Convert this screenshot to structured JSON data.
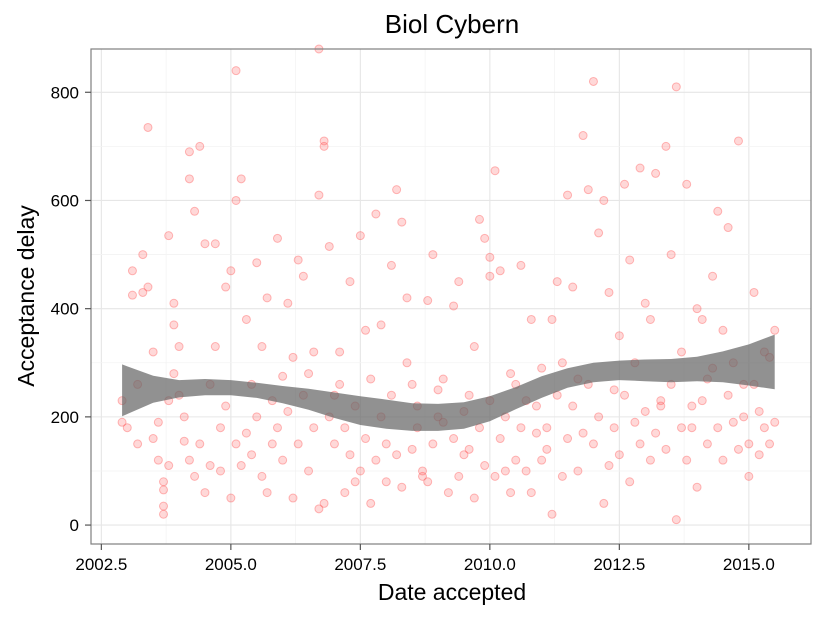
{
  "chart_data": {
    "type": "scatter",
    "title": "Biol Cybern",
    "xlabel": "Date accepted",
    "ylabel": "Acceptance delay",
    "xlim": [
      2002.3,
      2016.2
    ],
    "ylim": [
      -35,
      880
    ],
    "x_ticks": [
      2002.5,
      2005.0,
      2007.5,
      2010.0,
      2012.5,
      2015.0
    ],
    "x_tick_labels": [
      "2002.5",
      "2005.0",
      "2007.5",
      "2010.0",
      "2012.5",
      "2015.0"
    ],
    "y_ticks": [
      0,
      200,
      400,
      600,
      800
    ],
    "y_tick_labels": [
      "0",
      "200",
      "400",
      "600",
      "800"
    ],
    "grid": true,
    "point_color": "#ff4d4d",
    "band_color": "#666666",
    "series": [
      {
        "values": [
          [
            2002.9,
            190
          ],
          [
            2003.1,
            470
          ],
          [
            2003.1,
            425
          ],
          [
            2003.3,
            500
          ],
          [
            2003.3,
            430
          ],
          [
            2003.4,
            735
          ],
          [
            2003.4,
            440
          ],
          [
            2003.5,
            320
          ],
          [
            2003.6,
            190
          ],
          [
            2003.7,
            20
          ],
          [
            2003.7,
            65
          ],
          [
            2003.7,
            35
          ],
          [
            2003.8,
            535
          ],
          [
            2003.8,
            230
          ],
          [
            2003.9,
            410
          ],
          [
            2003.9,
            370
          ],
          [
            2004.0,
            330
          ],
          [
            2004.1,
            155
          ],
          [
            2004.2,
            690
          ],
          [
            2004.2,
            640
          ],
          [
            2004.3,
            580
          ],
          [
            2004.4,
            700
          ],
          [
            2004.5,
            520
          ],
          [
            2004.6,
            260
          ],
          [
            2004.7,
            520
          ],
          [
            2004.8,
            180
          ],
          [
            2004.9,
            440
          ],
          [
            2005.0,
            470
          ],
          [
            2005.1,
            840
          ],
          [
            2005.1,
            600
          ],
          [
            2005.2,
            640
          ],
          [
            2005.3,
            380
          ],
          [
            2005.4,
            130
          ],
          [
            2005.5,
            485
          ],
          [
            2005.6,
            330
          ],
          [
            2005.7,
            420
          ],
          [
            2005.8,
            230
          ],
          [
            2005.9,
            530
          ],
          [
            2006.0,
            275
          ],
          [
            2006.1,
            410
          ],
          [
            2006.2,
            310
          ],
          [
            2006.3,
            490
          ],
          [
            2006.4,
            460
          ],
          [
            2006.5,
            280
          ],
          [
            2006.6,
            320
          ],
          [
            2006.7,
            880
          ],
          [
            2006.7,
            610
          ],
          [
            2006.8,
            700
          ],
          [
            2006.8,
            710
          ],
          [
            2006.9,
            515
          ],
          [
            2007.0,
            240
          ],
          [
            2007.1,
            320
          ],
          [
            2007.2,
            180
          ],
          [
            2007.3,
            450
          ],
          [
            2007.4,
            80
          ],
          [
            2007.5,
            535
          ],
          [
            2007.6,
            360
          ],
          [
            2007.7,
            270
          ],
          [
            2007.8,
            575
          ],
          [
            2007.9,
            370
          ],
          [
            2008.0,
            150
          ],
          [
            2008.1,
            480
          ],
          [
            2008.2,
            620
          ],
          [
            2008.3,
            560
          ],
          [
            2008.4,
            420
          ],
          [
            2008.5,
            260
          ],
          [
            2008.6,
            180
          ],
          [
            2008.7,
            90
          ],
          [
            2008.8,
            415
          ],
          [
            2008.9,
            500
          ],
          [
            2009.0,
            250
          ],
          [
            2009.1,
            190
          ],
          [
            2009.3,
            405
          ],
          [
            2009.4,
            450
          ],
          [
            2009.5,
            130
          ],
          [
            2009.6,
            240
          ],
          [
            2009.7,
            330
          ],
          [
            2009.8,
            565
          ],
          [
            2009.9,
            530
          ],
          [
            2010.0,
            460
          ],
          [
            2010.0,
            495
          ],
          [
            2010.1,
            655
          ],
          [
            2010.2,
            470
          ],
          [
            2010.3,
            100
          ],
          [
            2010.4,
            280
          ],
          [
            2010.5,
            260
          ],
          [
            2010.6,
            480
          ],
          [
            2010.7,
            230
          ],
          [
            2010.8,
            380
          ],
          [
            2010.9,
            170
          ],
          [
            2011.0,
            290
          ],
          [
            2011.1,
            140
          ],
          [
            2011.2,
            380
          ],
          [
            2011.3,
            450
          ],
          [
            2011.4,
            300
          ],
          [
            2011.5,
            610
          ],
          [
            2011.6,
            440
          ],
          [
            2011.7,
            270
          ],
          [
            2011.8,
            720
          ],
          [
            2011.9,
            620
          ],
          [
            2012.0,
            820
          ],
          [
            2012.1,
            540
          ],
          [
            2012.2,
            600
          ],
          [
            2012.3,
            430
          ],
          [
            2012.4,
            250
          ],
          [
            2012.5,
            350
          ],
          [
            2012.6,
            630
          ],
          [
            2012.7,
            490
          ],
          [
            2012.8,
            300
          ],
          [
            2012.9,
            660
          ],
          [
            2013.0,
            410
          ],
          [
            2013.1,
            380
          ],
          [
            2013.2,
            650
          ],
          [
            2013.3,
            220
          ],
          [
            2013.4,
            700
          ],
          [
            2013.5,
            500
          ],
          [
            2013.6,
            810
          ],
          [
            2013.7,
            320
          ],
          [
            2013.8,
            630
          ],
          [
            2013.9,
            180
          ],
          [
            2014.0,
            400
          ],
          [
            2014.1,
            380
          ],
          [
            2014.2,
            270
          ],
          [
            2014.3,
            460
          ],
          [
            2014.4,
            580
          ],
          [
            2014.5,
            360
          ],
          [
            2014.6,
            550
          ],
          [
            2014.7,
            300
          ],
          [
            2014.8,
            710
          ],
          [
            2014.9,
            260
          ],
          [
            2015.0,
            150
          ],
          [
            2015.1,
            430
          ],
          [
            2015.2,
            210
          ],
          [
            2015.3,
            320
          ],
          [
            2015.4,
            150
          ],
          [
            2015.5,
            190
          ],
          [
            2002.9,
            230
          ],
          [
            2003.0,
            180
          ],
          [
            2003.2,
            150
          ],
          [
            2003.2,
            260
          ],
          [
            2003.5,
            160
          ],
          [
            2003.6,
            120
          ],
          [
            2003.7,
            80
          ],
          [
            2003.8,
            110
          ],
          [
            2003.9,
            280
          ],
          [
            2004.0,
            240
          ],
          [
            2004.1,
            200
          ],
          [
            2004.2,
            120
          ],
          [
            2004.3,
            90
          ],
          [
            2004.4,
            150
          ],
          [
            2004.5,
            60
          ],
          [
            2004.6,
            110
          ],
          [
            2004.7,
            330
          ],
          [
            2004.8,
            100
          ],
          [
            2004.9,
            220
          ],
          [
            2005.0,
            50
          ],
          [
            2005.1,
            150
          ],
          [
            2005.2,
            110
          ],
          [
            2005.3,
            170
          ],
          [
            2005.4,
            260
          ],
          [
            2005.5,
            200
          ],
          [
            2005.6,
            90
          ],
          [
            2005.7,
            60
          ],
          [
            2005.8,
            150
          ],
          [
            2005.9,
            180
          ],
          [
            2006.0,
            120
          ],
          [
            2006.1,
            210
          ],
          [
            2006.2,
            50
          ],
          [
            2006.3,
            150
          ],
          [
            2006.4,
            240
          ],
          [
            2006.5,
            100
          ],
          [
            2006.6,
            180
          ],
          [
            2006.7,
            30
          ],
          [
            2006.8,
            40
          ],
          [
            2006.9,
            200
          ],
          [
            2007.0,
            150
          ],
          [
            2007.1,
            260
          ],
          [
            2007.2,
            60
          ],
          [
            2007.3,
            130
          ],
          [
            2007.4,
            220
          ],
          [
            2007.5,
            100
          ],
          [
            2007.6,
            160
          ],
          [
            2007.7,
            40
          ],
          [
            2007.8,
            120
          ],
          [
            2007.9,
            200
          ],
          [
            2008.0,
            80
          ],
          [
            2008.1,
            240
          ],
          [
            2008.2,
            130
          ],
          [
            2008.3,
            70
          ],
          [
            2008.4,
            300
          ],
          [
            2008.5,
            140
          ],
          [
            2008.6,
            220
          ],
          [
            2008.7,
            100
          ],
          [
            2008.8,
            80
          ],
          [
            2008.9,
            150
          ],
          [
            2009.0,
            200
          ],
          [
            2009.1,
            270
          ],
          [
            2009.2,
            60
          ],
          [
            2009.3,
            160
          ],
          [
            2009.4,
            90
          ],
          [
            2009.5,
            210
          ],
          [
            2009.6,
            140
          ],
          [
            2009.7,
            50
          ],
          [
            2009.8,
            180
          ],
          [
            2009.9,
            110
          ],
          [
            2010.0,
            230
          ],
          [
            2010.1,
            90
          ],
          [
            2010.2,
            160
          ],
          [
            2010.3,
            200
          ],
          [
            2010.4,
            60
          ],
          [
            2010.5,
            120
          ],
          [
            2010.6,
            180
          ],
          [
            2010.7,
            100
          ],
          [
            2010.8,
            60
          ],
          [
            2010.9,
            220
          ],
          [
            2011.0,
            120
          ],
          [
            2011.1,
            180
          ],
          [
            2011.2,
            20
          ],
          [
            2011.3,
            240
          ],
          [
            2011.4,
            90
          ],
          [
            2011.5,
            160
          ],
          [
            2011.6,
            220
          ],
          [
            2011.7,
            100
          ],
          [
            2011.8,
            170
          ],
          [
            2011.9,
            260
          ],
          [
            2012.0,
            150
          ],
          [
            2012.1,
            200
          ],
          [
            2012.2,
            40
          ],
          [
            2012.3,
            110
          ],
          [
            2012.4,
            180
          ],
          [
            2012.5,
            130
          ],
          [
            2012.6,
            240
          ],
          [
            2012.7,
            80
          ],
          [
            2012.8,
            190
          ],
          [
            2012.9,
            150
          ],
          [
            2013.0,
            210
          ],
          [
            2013.1,
            120
          ],
          [
            2013.2,
            170
          ],
          [
            2013.3,
            230
          ],
          [
            2013.4,
            140
          ],
          [
            2013.5,
            260
          ],
          [
            2013.6,
            10
          ],
          [
            2013.7,
            180
          ],
          [
            2013.8,
            120
          ],
          [
            2013.9,
            220
          ],
          [
            2014.0,
            70
          ],
          [
            2014.1,
            230
          ],
          [
            2014.2,
            150
          ],
          [
            2014.3,
            290
          ],
          [
            2014.4,
            180
          ],
          [
            2014.5,
            120
          ],
          [
            2014.6,
            240
          ],
          [
            2014.7,
            190
          ],
          [
            2014.8,
            140
          ],
          [
            2014.9,
            200
          ],
          [
            2015.0,
            90
          ],
          [
            2015.1,
            260
          ],
          [
            2015.2,
            130
          ],
          [
            2015.3,
            180
          ],
          [
            2015.4,
            310
          ],
          [
            2015.5,
            360
          ]
        ]
      }
    ],
    "smooth_band": {
      "x": [
        2002.9,
        2003.5,
        2004.0,
        2004.5,
        2005.0,
        2005.5,
        2006.0,
        2006.5,
        2007.0,
        2007.5,
        2008.0,
        2008.5,
        2009.0,
        2009.5,
        2010.0,
        2010.5,
        2011.0,
        2011.5,
        2012.0,
        2012.5,
        2013.0,
        2013.5,
        2014.0,
        2014.5,
        2015.0,
        2015.5
      ],
      "upper": [
        297,
        276,
        268,
        270,
        268,
        263,
        257,
        252,
        245,
        238,
        232,
        225,
        224,
        227,
        238,
        255,
        275,
        290,
        300,
        304,
        306,
        307,
        311,
        321,
        334,
        352
      ],
      "lower": [
        201,
        226,
        236,
        240,
        240,
        235,
        225,
        213,
        198,
        185,
        178,
        174,
        174,
        178,
        192,
        214,
        235,
        254,
        264,
        268,
        266,
        264,
        266,
        264,
        258,
        251
      ]
    }
  }
}
